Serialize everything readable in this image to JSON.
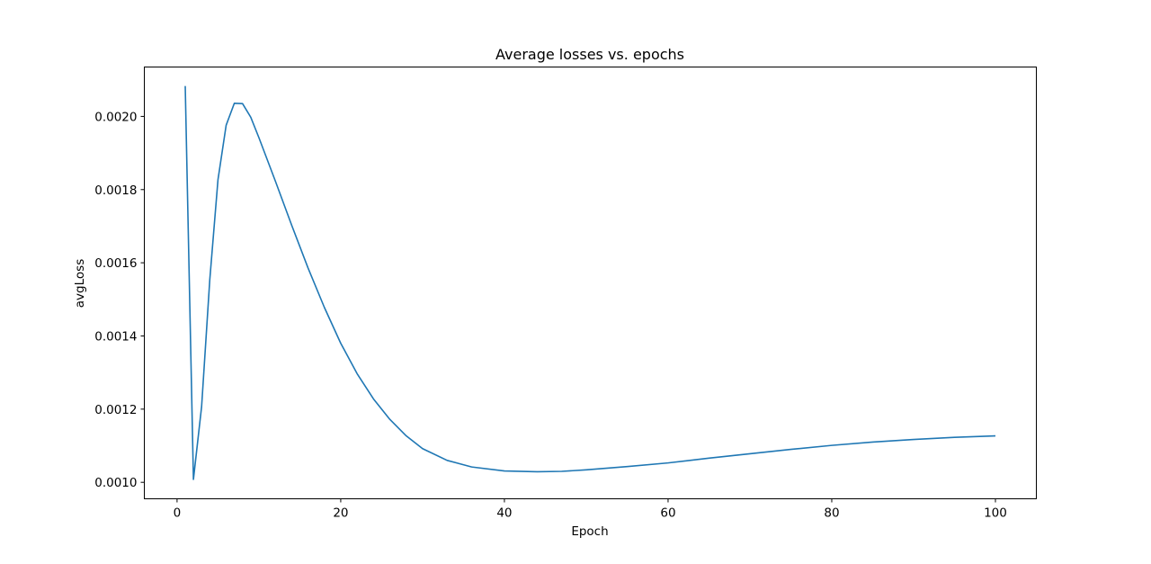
{
  "chart_data": {
    "type": "line",
    "title": "Average losses vs. epochs",
    "xlabel": "Epoch",
    "ylabel": "avgLoss",
    "xlim": [
      -4.0,
      105.0
    ],
    "ylim": [
      0.000955,
      0.002135
    ],
    "xticks": [
      0,
      20,
      40,
      60,
      80,
      100
    ],
    "xtick_labels": [
      "0",
      "20",
      "40",
      "60",
      "80",
      "100"
    ],
    "yticks": [
      0.001,
      0.0012,
      0.0014,
      0.0016,
      0.0018,
      0.002
    ],
    "ytick_labels": [
      "0.0010",
      "0.0012",
      "0.0014",
      "0.0016",
      "0.0018",
      "0.0020"
    ],
    "grid": false,
    "line_color": "#1f77b4",
    "series": [
      {
        "x": [
          1,
          2,
          3,
          4,
          5,
          6,
          7,
          8,
          9,
          10,
          12,
          14,
          16,
          18,
          20,
          22,
          24,
          26,
          28,
          30,
          33,
          36,
          40,
          44,
          47,
          50,
          55,
          60,
          65,
          70,
          75,
          80,
          85,
          90,
          95,
          100
        ],
        "y": [
          0.002083,
          0.001008,
          0.001207,
          0.001554,
          0.001827,
          0.001976,
          0.002036,
          0.002035,
          0.001998,
          0.001942,
          0.001824,
          0.001703,
          0.001586,
          0.001478,
          0.00138,
          0.001297,
          0.001228,
          0.001172,
          0.001127,
          0.001092,
          0.00106,
          0.001042,
          0.001031,
          0.001029,
          0.00103,
          0.001034,
          0.001043,
          0.001053,
          0.001066,
          0.001078,
          0.00109,
          0.001101,
          0.00111,
          0.001117,
          0.001123,
          0.001127
        ]
      }
    ]
  }
}
